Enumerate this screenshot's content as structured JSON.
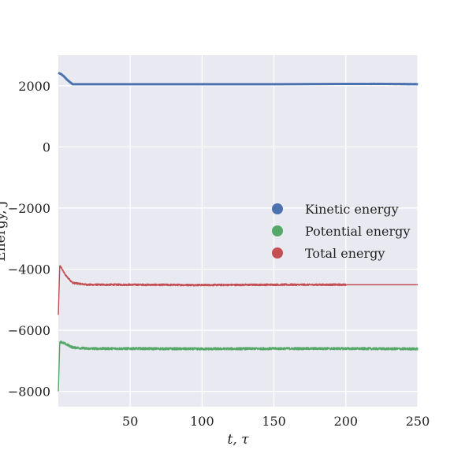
{
  "chart_data": {
    "type": "line",
    "xlabel": "t, τ",
    "ylabel": "Energy, J",
    "xlim": [
      0,
      250
    ],
    "ylim": [
      -8500,
      3000
    ],
    "xticks": [
      50,
      100,
      150,
      200,
      250
    ],
    "yticks": [
      -8000,
      -6000,
      -4000,
      -2000,
      0,
      2000
    ],
    "grid": true,
    "legend_position": "center-right",
    "series": [
      {
        "name": "Kinetic energy",
        "color": "#4c72b0",
        "x": [
          0,
          1,
          2,
          4,
          6,
          8,
          10,
          50,
          100,
          150,
          200,
          225,
          250
        ],
        "y": [
          2420,
          2400,
          2380,
          2300,
          2200,
          2120,
          2050,
          2050,
          2050,
          2050,
          2060,
          2060,
          2050
        ],
        "noise_from_x": 200,
        "noise_amplitude": 25
      },
      {
        "name": "Potential energy",
        "color": "#55a868",
        "x": [
          0,
          1,
          2,
          5,
          10,
          20,
          50,
          100,
          150,
          200,
          250
        ],
        "y": [
          -8000,
          -6400,
          -6380,
          -6450,
          -6560,
          -6600,
          -6600,
          -6610,
          -6600,
          -6600,
          -6610
        ],
        "noise_from_x": 1,
        "noise_amplitude": 40
      },
      {
        "name": "Total energy",
        "color": "#c44e52",
        "x": [
          0,
          1,
          2,
          5,
          10,
          20,
          50,
          100,
          150,
          200,
          225,
          250
        ],
        "y": [
          -5500,
          -3900,
          -3950,
          -4200,
          -4450,
          -4510,
          -4510,
          -4520,
          -4510,
          -4510,
          -4510,
          -4510
        ],
        "noise_from_x": 1,
        "noise_until_x": 200,
        "noise_amplitude": 30
      }
    ]
  }
}
